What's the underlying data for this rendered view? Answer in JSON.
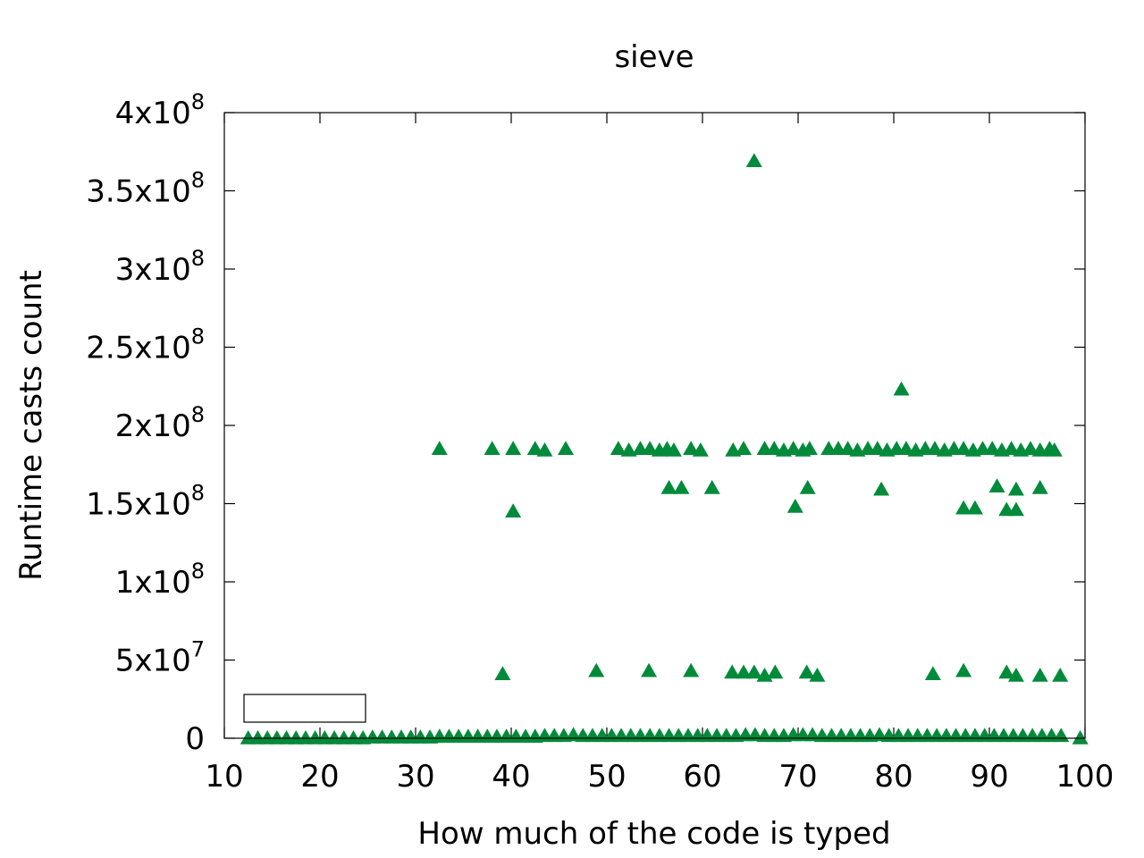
{
  "chart_data": {
    "type": "scatter",
    "title": "sieve",
    "xlabel": "How much of the code is typed",
    "ylabel": "Runtime casts count",
    "xlim": [
      10,
      100
    ],
    "ylim": [
      0,
      400000000
    ],
    "grid": false,
    "legend": "top-left (empty box)",
    "marker": "triangle",
    "color": "#008b3a",
    "x_ticks": [
      "10",
      "20",
      "30",
      "40",
      "50",
      "60",
      "70",
      "80",
      "90",
      "100"
    ],
    "y_ticks": [
      {
        "base": "0",
        "exp": ""
      },
      {
        "base": "5x10",
        "exp": "7"
      },
      {
        "base": "1x10",
        "exp": "8"
      },
      {
        "base": "1.5x10",
        "exp": "8"
      },
      {
        "base": "2x10",
        "exp": "8"
      },
      {
        "base": "2.5x10",
        "exp": "8"
      },
      {
        "base": "3x10",
        "exp": "8"
      },
      {
        "base": "3.5x10",
        "exp": "8"
      },
      {
        "base": "4x10",
        "exp": "8"
      }
    ],
    "y_tick_values": [
      0,
      50000000,
      100000000,
      150000000,
      200000000,
      250000000,
      300000000,
      350000000,
      400000000
    ],
    "x_tick_values": [
      10,
      20,
      30,
      40,
      50,
      60,
      70,
      80,
      90,
      100
    ],
    "points": [
      [
        12.5,
        0
      ],
      [
        13.5,
        0
      ],
      [
        14.5,
        0
      ],
      [
        15.5,
        0
      ],
      [
        16.5,
        0
      ],
      [
        17.5,
        0
      ],
      [
        18.5,
        0
      ],
      [
        19.5,
        0
      ],
      [
        20.5,
        0
      ],
      [
        21.5,
        0
      ],
      [
        22.5,
        0
      ],
      [
        23.5,
        0
      ],
      [
        24.5,
        0
      ],
      [
        25.5,
        500000
      ],
      [
        26.5,
        500000
      ],
      [
        27.5,
        500000
      ],
      [
        28.5,
        500000
      ],
      [
        29.5,
        500000
      ],
      [
        30.5,
        500000
      ],
      [
        31.5,
        500000
      ],
      [
        32.5,
        1000000
      ],
      [
        33.5,
        1000000
      ],
      [
        34.5,
        1000000
      ],
      [
        35.5,
        1000000
      ],
      [
        36.5,
        1000000
      ],
      [
        37.5,
        1000000
      ],
      [
        38.5,
        1000000
      ],
      [
        39.5,
        1000000
      ],
      [
        40.5,
        1000000
      ],
      [
        41.5,
        1000000
      ],
      [
        42.5,
        1000000
      ],
      [
        43.5,
        1500000
      ],
      [
        44.5,
        1500000
      ],
      [
        45.5,
        1500000
      ],
      [
        46.5,
        2000000
      ],
      [
        47.5,
        1500000
      ],
      [
        48.5,
        1500000
      ],
      [
        49.5,
        1500000
      ],
      [
        50.5,
        1500000
      ],
      [
        51.5,
        1500000
      ],
      [
        52.5,
        1500000
      ],
      [
        53.5,
        1500000
      ],
      [
        54.5,
        1500000
      ],
      [
        55.5,
        1500000
      ],
      [
        56.5,
        1500000
      ],
      [
        57.5,
        1500000
      ],
      [
        58.5,
        1500000
      ],
      [
        59.5,
        1500000
      ],
      [
        60.5,
        1500000
      ],
      [
        61.5,
        1500000
      ],
      [
        62.5,
        1500000
      ],
      [
        63.5,
        1500000
      ],
      [
        64.5,
        2000000
      ],
      [
        65.5,
        2000000
      ],
      [
        66.5,
        1500000
      ],
      [
        67.5,
        1500000
      ],
      [
        68.5,
        1500000
      ],
      [
        69.5,
        2000000
      ],
      [
        70.5,
        2000000
      ],
      [
        71.5,
        2000000
      ],
      [
        72.5,
        1500000
      ],
      [
        73.5,
        1500000
      ],
      [
        74.5,
        1500000
      ],
      [
        75.5,
        1500000
      ],
      [
        76.5,
        1500000
      ],
      [
        77.5,
        1500000
      ],
      [
        78.5,
        2000000
      ],
      [
        79.5,
        1500000
      ],
      [
        80.5,
        1500000
      ],
      [
        81.5,
        1500000
      ],
      [
        82.5,
        1500000
      ],
      [
        83.5,
        1500000
      ],
      [
        84.5,
        1500000
      ],
      [
        85.5,
        1500000
      ],
      [
        86.5,
        1500000
      ],
      [
        87.5,
        1500000
      ],
      [
        88.5,
        1500000
      ],
      [
        89.5,
        1500000
      ],
      [
        90.5,
        1500000
      ],
      [
        91.5,
        1500000
      ],
      [
        92.5,
        1500000
      ],
      [
        93.5,
        1500000
      ],
      [
        94.5,
        1500000
      ],
      [
        95.5,
        1500000
      ],
      [
        96.5,
        1500000
      ],
      [
        97.5,
        1500000
      ],
      [
        99.5,
        0
      ],
      [
        32.5,
        185000000
      ],
      [
        38.0,
        185000000
      ],
      [
        40.2,
        185000000
      ],
      [
        42.5,
        185000000
      ],
      [
        43.5,
        184000000
      ],
      [
        45.7,
        185000000
      ],
      [
        51.2,
        185000000
      ],
      [
        52.3,
        184000000
      ],
      [
        53.5,
        185000000
      ],
      [
        54.5,
        185000000
      ],
      [
        55.5,
        184000000
      ],
      [
        56.3,
        185000000
      ],
      [
        57.0,
        184000000
      ],
      [
        58.8,
        185000000
      ],
      [
        59.8,
        184000000
      ],
      [
        63.2,
        184000000
      ],
      [
        64.3,
        185000000
      ],
      [
        66.5,
        185000000
      ],
      [
        67.5,
        185000000
      ],
      [
        68.5,
        184000000
      ],
      [
        69.5,
        185000000
      ],
      [
        70.5,
        184000000
      ],
      [
        71.2,
        185000000
      ],
      [
        73.2,
        185000000
      ],
      [
        74.2,
        185000000
      ],
      [
        75.2,
        185000000
      ],
      [
        76.2,
        184000000
      ],
      [
        77.3,
        185000000
      ],
      [
        78.3,
        185000000
      ],
      [
        79.3,
        184000000
      ],
      [
        80.3,
        185000000
      ],
      [
        81.3,
        185000000
      ],
      [
        82.3,
        184000000
      ],
      [
        83.3,
        185000000
      ],
      [
        84.3,
        185000000
      ],
      [
        85.3,
        184000000
      ],
      [
        86.3,
        185000000
      ],
      [
        87.3,
        185000000
      ],
      [
        88.3,
        184000000
      ],
      [
        89.3,
        185000000
      ],
      [
        90.3,
        185000000
      ],
      [
        91.3,
        184000000
      ],
      [
        92.3,
        185000000
      ],
      [
        93.3,
        184000000
      ],
      [
        94.3,
        185000000
      ],
      [
        95.3,
        184000000
      ],
      [
        96.3,
        185000000
      ],
      [
        96.8,
        184000000
      ],
      [
        40.2,
        145000000
      ],
      [
        56.5,
        160000000
      ],
      [
        57.8,
        160000000
      ],
      [
        61.0,
        160000000
      ],
      [
        69.7,
        148000000
      ],
      [
        71.0,
        160000000
      ],
      [
        78.7,
        159000000
      ],
      [
        87.3,
        147000000
      ],
      [
        88.5,
        147000000
      ],
      [
        90.8,
        161000000
      ],
      [
        91.8,
        146000000
      ],
      [
        92.8,
        146000000
      ],
      [
        92.8,
        159000000
      ],
      [
        95.3,
        160000000
      ],
      [
        65.4,
        369000000
      ],
      [
        80.8,
        223000000
      ],
      [
        39.1,
        41000000
      ],
      [
        48.9,
        43000000
      ],
      [
        54.4,
        43000000
      ],
      [
        58.8,
        43000000
      ],
      [
        63.1,
        42000000
      ],
      [
        64.3,
        42000000
      ],
      [
        65.4,
        42000000
      ],
      [
        66.5,
        40000000
      ],
      [
        67.6,
        42000000
      ],
      [
        70.9,
        42000000
      ],
      [
        72.0,
        40000000
      ],
      [
        84.1,
        41000000
      ],
      [
        87.3,
        43000000
      ],
      [
        91.8,
        42000000
      ],
      [
        92.8,
        40000000
      ],
      [
        95.3,
        40000000
      ],
      [
        97.4,
        40000000
      ]
    ]
  }
}
